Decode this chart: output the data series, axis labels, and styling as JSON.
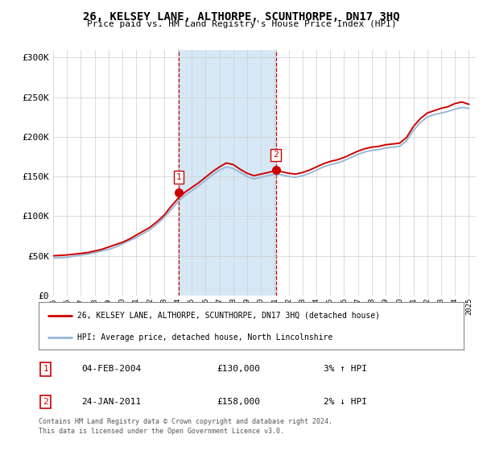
{
  "title": "26, KELSEY LANE, ALTHORPE, SCUNTHORPE, DN17 3HQ",
  "subtitle": "Price paid vs. HM Land Registry's House Price Index (HPI)",
  "years": [
    1995.0,
    1995.5,
    1996.0,
    1996.5,
    1997.0,
    1997.5,
    1998.0,
    1998.5,
    1999.0,
    1999.5,
    2000.0,
    2000.5,
    2001.0,
    2001.5,
    2002.0,
    2002.5,
    2003.0,
    2003.5,
    2004.0,
    2004.5,
    2005.0,
    2005.5,
    2006.0,
    2006.5,
    2007.0,
    2007.5,
    2008.0,
    2008.5,
    2009.0,
    2009.5,
    2010.0,
    2010.5,
    2011.0,
    2011.5,
    2012.0,
    2012.5,
    2013.0,
    2013.5,
    2014.0,
    2014.5,
    2015.0,
    2015.5,
    2016.0,
    2016.5,
    2017.0,
    2017.5,
    2018.0,
    2018.5,
    2019.0,
    2019.5,
    2020.0,
    2020.5,
    2021.0,
    2021.5,
    2022.0,
    2022.5,
    2023.0,
    2023.5,
    2024.0,
    2024.5,
    2025.0
  ],
  "hpi_values": [
    47000,
    47500,
    48000,
    49500,
    51000,
    52000,
    54000,
    56000,
    58000,
    61000,
    65000,
    69000,
    73000,
    78000,
    83000,
    90000,
    98000,
    108000,
    118000,
    126000,
    132000,
    138000,
    145000,
    152000,
    158000,
    162000,
    160000,
    155000,
    150000,
    147000,
    149000,
    151000,
    153000,
    152000,
    150000,
    149000,
    151000,
    154000,
    158000,
    162000,
    165000,
    167000,
    170000,
    174000,
    178000,
    181000,
    183000,
    184000,
    186000,
    187000,
    188000,
    195000,
    208000,
    218000,
    225000,
    228000,
    230000,
    232000,
    235000,
    237000,
    236000
  ],
  "prop_values": [
    50000,
    50500,
    51000,
    52000,
    53000,
    54000,
    56000,
    58000,
    61000,
    64000,
    67000,
    71000,
    76000,
    81000,
    86000,
    93000,
    101000,
    112000,
    122000,
    130000,
    136000,
    142000,
    149000,
    156000,
    162000,
    167000,
    165000,
    159000,
    154000,
    151000,
    153000,
    155000,
    157000,
    156000,
    154000,
    153000,
    155000,
    158000,
    162000,
    166000,
    169000,
    171000,
    174000,
    178000,
    182000,
    185000,
    187000,
    188000,
    190000,
    191000,
    192000,
    199000,
    213000,
    223000,
    230000,
    233000,
    236000,
    238000,
    242000,
    244000,
    241000
  ],
  "sale1_year": 2004.07,
  "sale1_price": 130000,
  "sale2_year": 2011.07,
  "sale2_price": 158000,
  "shade_color": "#d6e8f5",
  "line_color_property": "#cc0000",
  "line_color_hpi": "#99b8d8",
  "marker_color": "#cc0000",
  "vline_color": "#cc0000",
  "ylim_min": 0,
  "ylim_max": 310000,
  "yticks": [
    0,
    50000,
    100000,
    150000,
    200000,
    250000,
    300000
  ],
  "ytick_labels": [
    "£0",
    "£50K",
    "£100K",
    "£150K",
    "£200K",
    "£250K",
    "£300K"
  ],
  "legend_label_property": "26, KELSEY LANE, ALTHORPE, SCUNTHORPE, DN17 3HQ (detached house)",
  "legend_label_hpi": "HPI: Average price, detached house, North Lincolnshire",
  "sale1_date": "04-FEB-2004",
  "sale1_amount": "£130,000",
  "sale1_hpi": "3% ↑ HPI",
  "sale2_date": "24-JAN-2011",
  "sale2_amount": "£158,000",
  "sale2_hpi": "2% ↓ HPI",
  "footer": "Contains HM Land Registry data © Crown copyright and database right 2024.\nThis data is licensed under the Open Government Licence v3.0.",
  "bg_color": "#ffffff",
  "plot_bg_color": "#ffffff",
  "grid_color": "#cccccc"
}
